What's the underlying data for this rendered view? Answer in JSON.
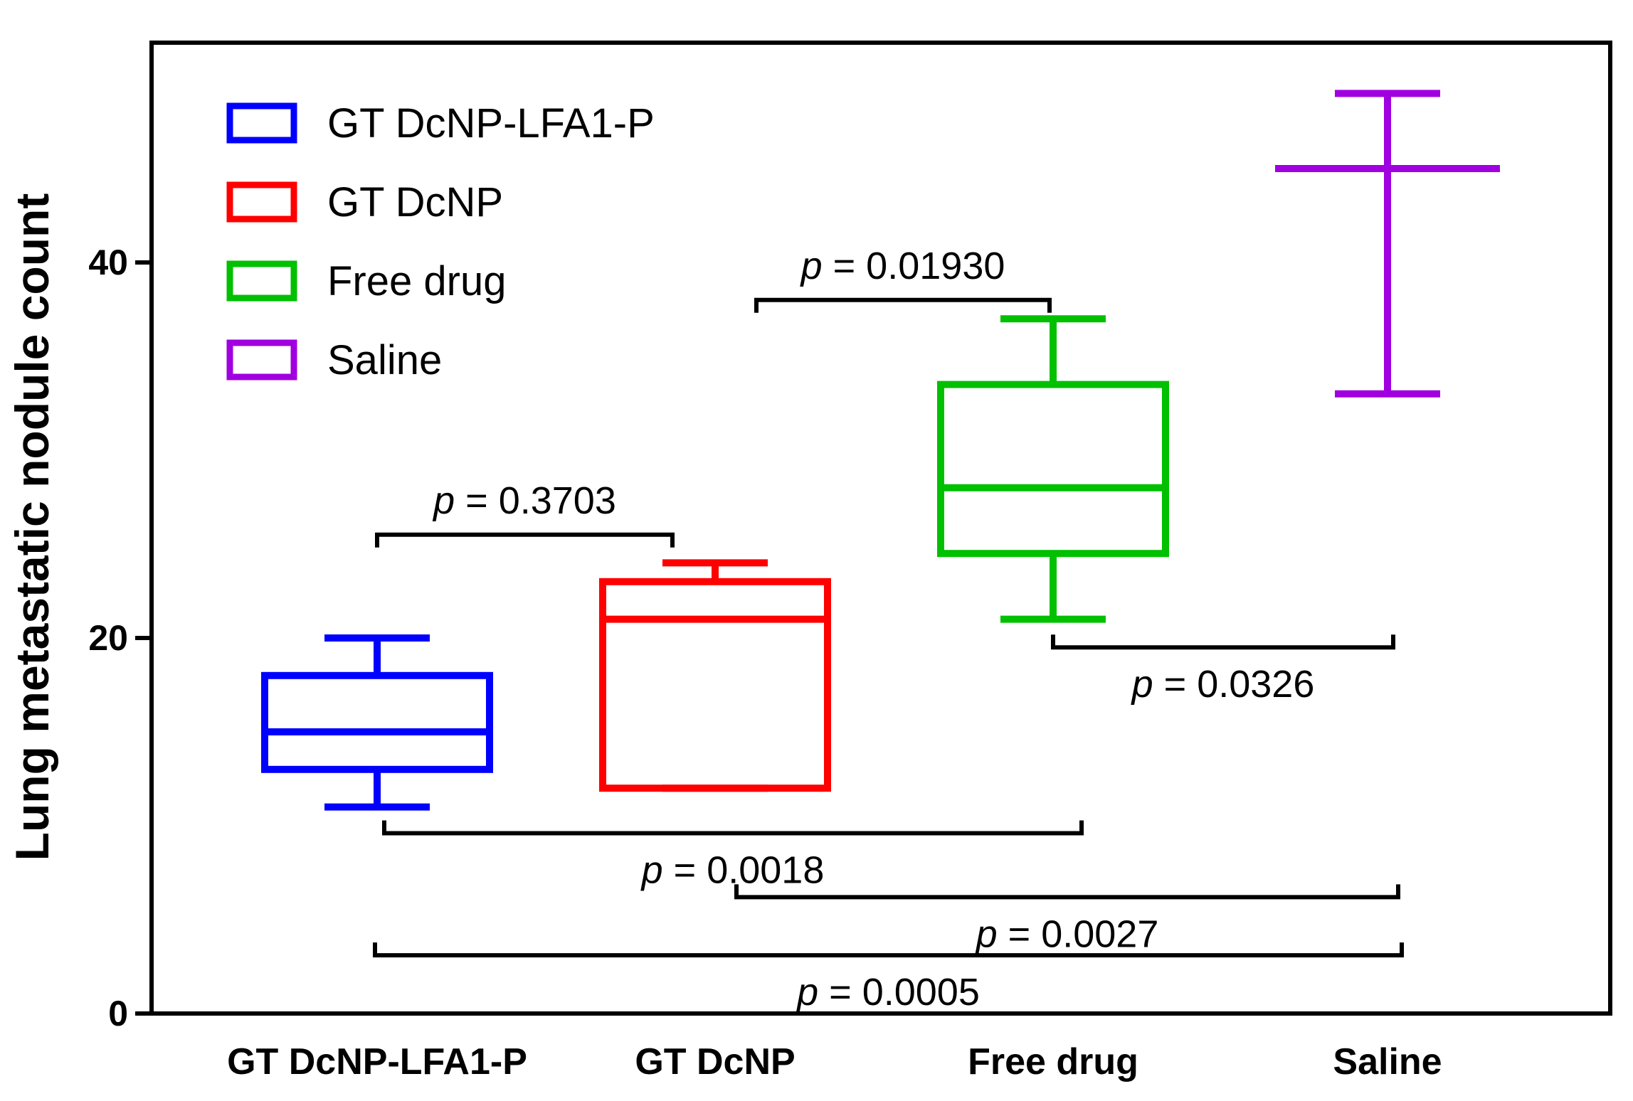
{
  "chart_data": {
    "type": "box",
    "title": "",
    "xlabel": "",
    "ylabel": "Lung metastatic nodule count",
    "ylim": [
      0,
      52
    ],
    "yticks": [
      "0",
      "20",
      "40"
    ],
    "legend_position": "top-left",
    "categories": [
      "GT DcNP-LFA1-P",
      "GT DcNP",
      "Free drug",
      "Saline"
    ],
    "series": [
      {
        "name": "GT DcNP-LFA1-P",
        "color": "#0000ff",
        "min": 11,
        "q1": 13,
        "median": 15,
        "q3": 18,
        "max": 20
      },
      {
        "name": "GT DcNP",
        "color": "#ff0000",
        "min": 12,
        "q1": 12,
        "median": 21,
        "q3": 23,
        "max": 24
      },
      {
        "name": "Free drug",
        "color": "#00c000",
        "min": 21,
        "q1": 24.5,
        "median": 28,
        "q3": 33.5,
        "max": 37
      },
      {
        "name": "Saline",
        "color": "#a000e0",
        "min": 33,
        "q1": 45,
        "median": 45,
        "q3": 45,
        "max": 49
      }
    ],
    "legend": [
      {
        "label": "GT DcNP-LFA1-P",
        "color": "#0000ff"
      },
      {
        "label": "GT DcNP",
        "color": "#ff0000"
      },
      {
        "label": "Free drug",
        "color": "#00c000"
      },
      {
        "label": "Saline",
        "color": "#a000e0"
      }
    ],
    "comparisons": [
      {
        "p_symbol": "p",
        "value": " = 0.3703",
        "from": 0,
        "to": 1,
        "level": 25.5,
        "label_position": "above"
      },
      {
        "p_symbol": "p",
        "value": " = 0.01930",
        "from": 1,
        "to": 2,
        "level": 38,
        "label_position": "above"
      },
      {
        "p_symbol": "p",
        "value": " = 0.0326",
        "from": 2,
        "to": 3,
        "level": 19.5,
        "label_position": "below"
      },
      {
        "p_symbol": "p",
        "value": " = 0.0018",
        "from": 0,
        "to": 2,
        "level": 9.6,
        "label_position": "below"
      },
      {
        "p_symbol": "p",
        "value": " = 0.0027",
        "from": 1,
        "to": 3,
        "level": 6.2,
        "label_position": "below"
      },
      {
        "p_symbol": "p",
        "value": " = 0.0005",
        "from": 0,
        "to": 3,
        "level": 3.1,
        "label_position": "below"
      }
    ]
  }
}
